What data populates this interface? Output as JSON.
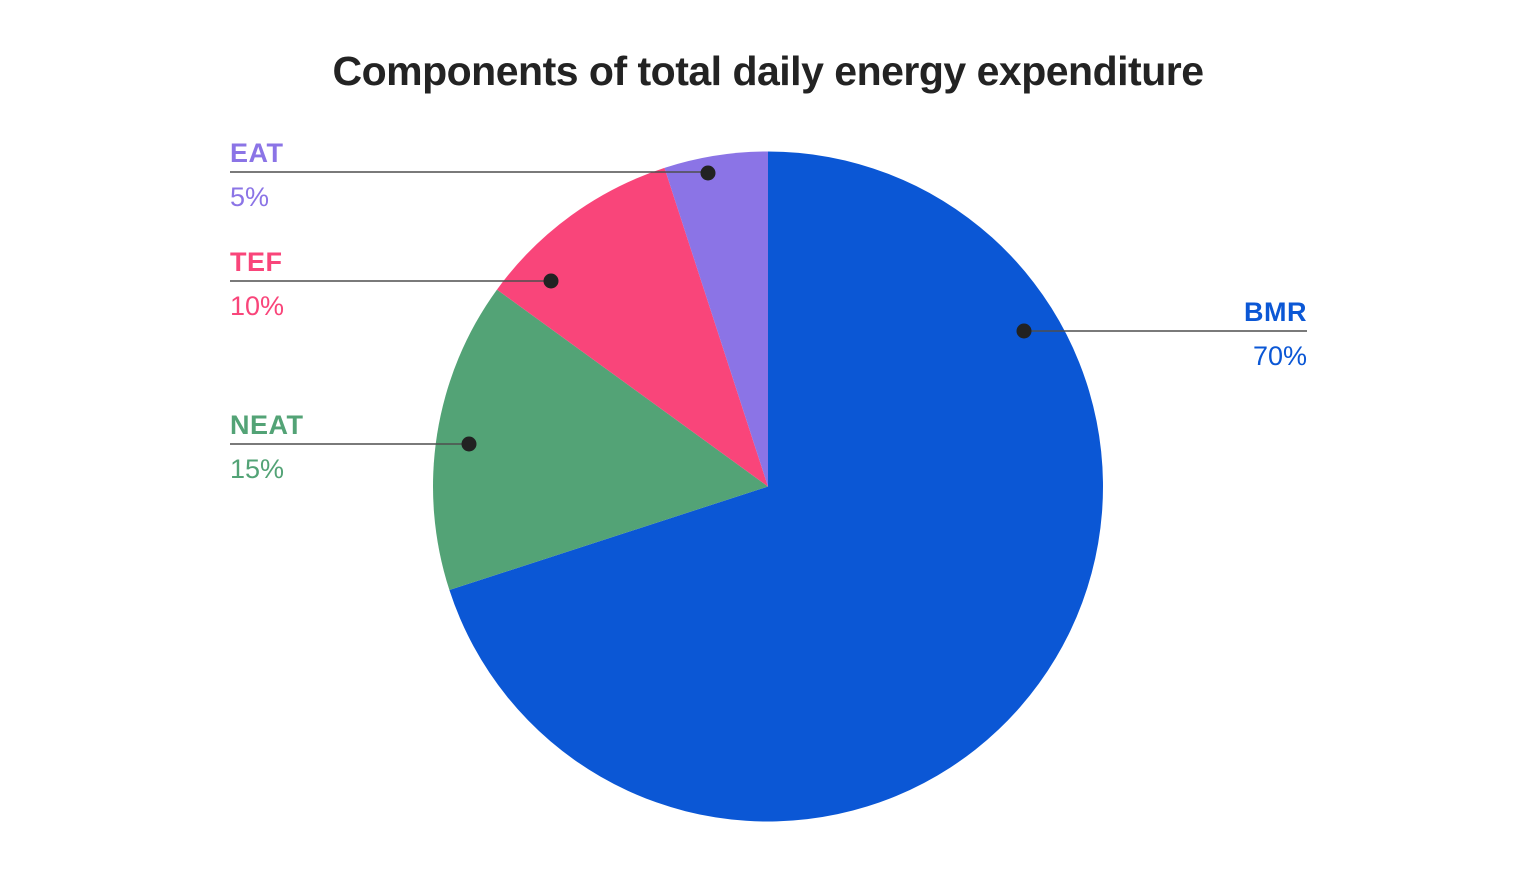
{
  "title": "Components of total daily energy expenditure",
  "chart_data": {
    "type": "pie",
    "title": "Components of total daily energy expenditure",
    "unit": "percent",
    "direction": "clockwise",
    "start_angle_deg": 0,
    "legend_position": "callout-labels",
    "labels": [
      "BMR",
      "NEAT",
      "TEF",
      "EAT"
    ],
    "values": [
      70,
      15,
      10,
      5
    ],
    "slices": [
      {
        "label": "BMR",
        "value": 70,
        "display": "70%",
        "color": "#0b57d5"
      },
      {
        "label": "NEAT",
        "value": 15,
        "display": "15%",
        "color": "#53a376"
      },
      {
        "label": "TEF",
        "value": 10,
        "display": "10%",
        "color": "#f9457a"
      },
      {
        "label": "EAT",
        "value": 5,
        "display": "5%",
        "color": "#8b74e6"
      }
    ],
    "colors": {
      "leader_line": "#4e4e4e",
      "leader_dot": "#222222",
      "title_text": "#232323",
      "background": "#ffffff"
    }
  }
}
